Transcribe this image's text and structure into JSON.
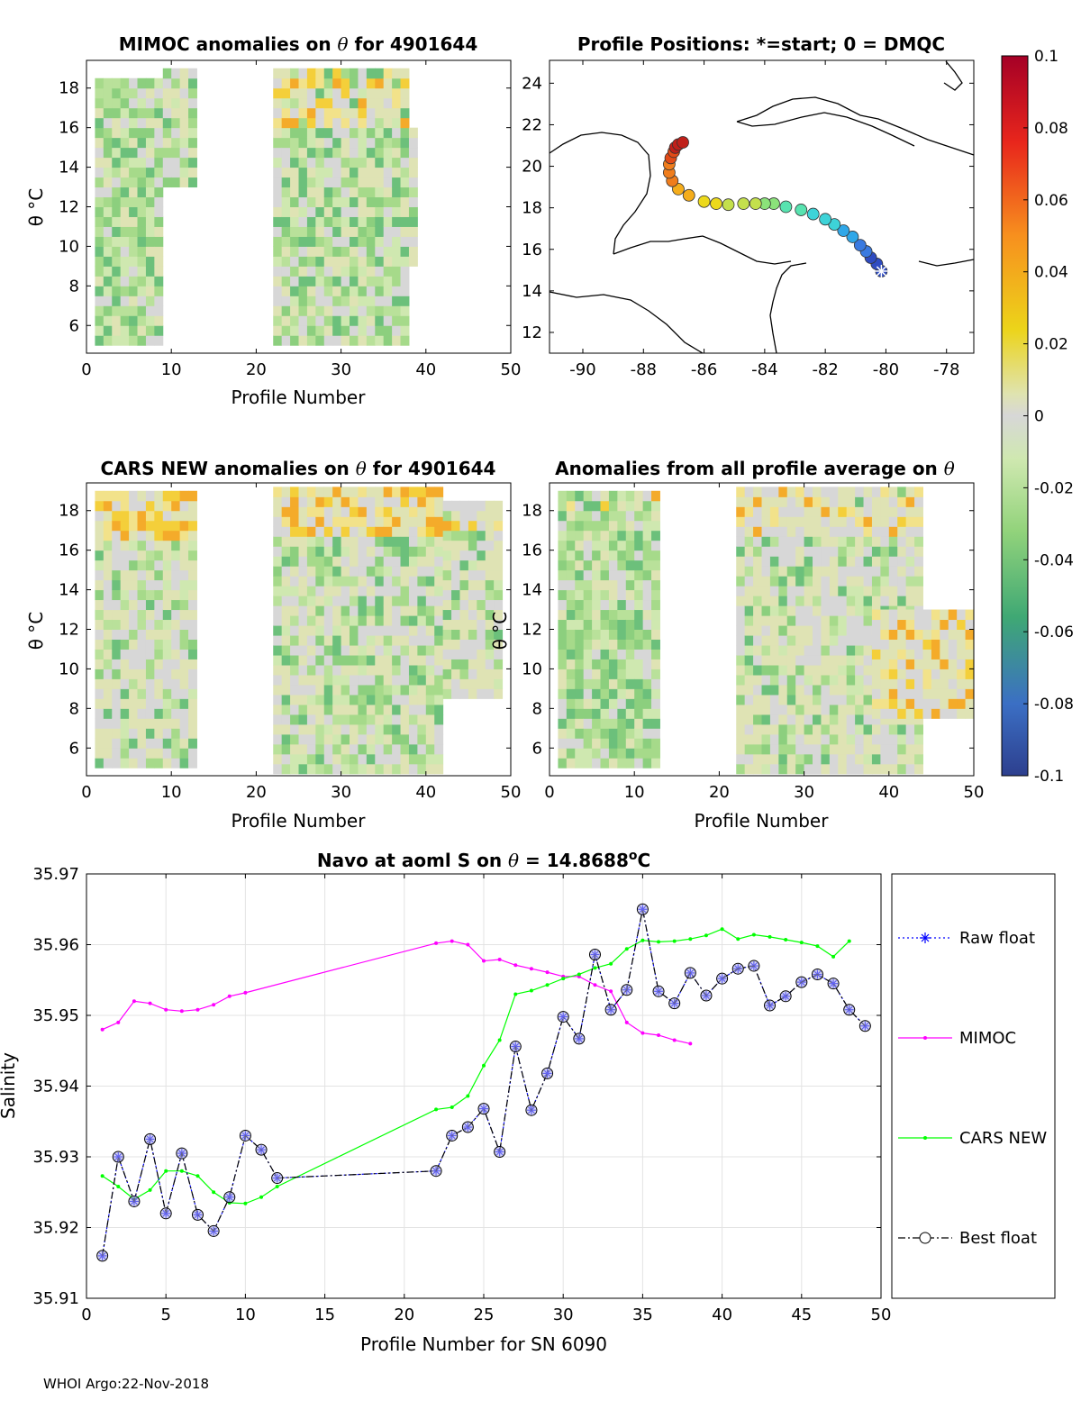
{
  "footer": "WHOI Argo:22-Nov-2018",
  "colors": {
    "raw_float": "#0000ff",
    "mimoc": "#ff00ff",
    "cars_new": "#00ff00",
    "best_float": "#000000",
    "marker_fill": "#b3b3e6",
    "no_data": "#d7d7d7"
  },
  "colorbar": {
    "ticks": [
      "0.1",
      "0.08",
      "0.06",
      "0.04",
      "0.02",
      "0",
      "-0.02",
      "-0.04",
      "-0.06",
      "-0.08",
      "-0.1"
    ]
  },
  "panels": {
    "mimoc": {
      "title_pre": "MIMOC anomalies on",
      "title_sym": "θ",
      "title_post": " for 4901644",
      "ylabel": "θ °C",
      "xlabel": "Profile Number",
      "xticks": [
        "0",
        "10",
        "20",
        "30",
        "40",
        "50"
      ],
      "yticks": [
        "6",
        "8",
        "10",
        "12",
        "14",
        "16",
        "18"
      ],
      "xlim": [
        0,
        50
      ],
      "ylim": [
        4.6,
        19.4
      ]
    },
    "map": {
      "title": "Profile Positions: *=start; 0 = DMQC",
      "xticks": [
        "-90",
        "-88",
        "-86",
        "-84",
        "-82",
        "-80",
        "-78"
      ],
      "yticks": [
        "12",
        "14",
        "16",
        "18",
        "20",
        "22",
        "24"
      ],
      "xlim": [
        -91.1,
        -77.1
      ],
      "ylim": [
        11,
        25.1
      ],
      "track_lon": [
        -80.15,
        -80.3,
        -80.5,
        -80.65,
        -80.85,
        -81.1,
        -81.4,
        -81.7,
        -82.0,
        -82.4,
        -82.8,
        -83.3,
        -83.7,
        -84.0,
        -84.3,
        -84.7,
        -85.2,
        -85.6,
        -86.0,
        -86.5,
        -86.85,
        -87.05,
        -87.15,
        -87.15,
        -87.1,
        -87.0,
        -86.95,
        -86.85,
        -86.7
      ],
      "track_lat": [
        14.95,
        15.3,
        15.6,
        15.9,
        16.2,
        16.6,
        16.9,
        17.2,
        17.45,
        17.7,
        17.9,
        18.05,
        18.2,
        18.2,
        18.2,
        18.2,
        18.15,
        18.2,
        18.3,
        18.6,
        18.9,
        19.3,
        19.7,
        20.1,
        20.4,
        20.7,
        20.9,
        21.05,
        21.15
      ]
    },
    "cars": {
      "title_pre": "CARS NEW anomalies on ",
      "title_sym": "θ",
      "title_post": " for 4901644",
      "ylabel": "θ °C",
      "xlabel": "Profile Number",
      "xticks": [
        "0",
        "10",
        "20",
        "30",
        "40",
        "50"
      ],
      "yticks": [
        "6",
        "8",
        "10",
        "12",
        "14",
        "16",
        "18"
      ],
      "xlim": [
        0,
        50
      ],
      "ylim": [
        4.6,
        19.4
      ]
    },
    "avg": {
      "title_pre": "Anomalies from all profile average on ",
      "title_sym": "θ",
      "title_post": "",
      "ylabel": "θ °C",
      "xlabel": "Profile Number",
      "xticks": [
        "0",
        "10",
        "20",
        "30",
        "40",
        "50"
      ],
      "yticks": [
        "6",
        "8",
        "10",
        "12",
        "14",
        "16",
        "18"
      ],
      "xlim": [
        0,
        50
      ],
      "ylim": [
        4.6,
        19.4
      ]
    }
  },
  "chart_data": {
    "type": "line",
    "title_pre": "Navo at aoml S on ",
    "title_sym": "θ",
    "title_val": " = 14.8688",
    "title_sup": "o",
    "title_unit": "C",
    "xlabel": "Profile Number for SN 6090",
    "ylabel": "Salinity",
    "xlim": [
      0,
      50
    ],
    "ylim": [
      35.91,
      35.97
    ],
    "xticks": [
      "0",
      "5",
      "10",
      "15",
      "20",
      "25",
      "30",
      "35",
      "40",
      "45",
      "50"
    ],
    "yticks": [
      "35.91",
      "35.92",
      "35.93",
      "35.94",
      "35.95",
      "35.96",
      "35.97"
    ],
    "grid": true,
    "legend": [
      "Raw float",
      "MIMOC",
      "CARS NEW",
      "Best float"
    ],
    "series": [
      {
        "name": "Raw float",
        "x": [
          1,
          2,
          3,
          4,
          5,
          6,
          7,
          8,
          9,
          10,
          11,
          12,
          22,
          23,
          24,
          25,
          26,
          27,
          28,
          29,
          30,
          31,
          32,
          33,
          34,
          35,
          36,
          37,
          38,
          39,
          40,
          41,
          42,
          43,
          44,
          45,
          46,
          47,
          48,
          49
        ],
        "values": [
          35.916,
          35.93,
          35.9237,
          35.9325,
          35.922,
          35.9305,
          35.9218,
          35.9195,
          35.9243,
          35.933,
          35.931,
          35.927,
          35.928,
          35.933,
          35.9342,
          35.9368,
          35.9307,
          35.9456,
          35.9366,
          35.9418,
          35.9498,
          35.9467,
          35.9586,
          35.9508,
          35.9536,
          35.965,
          35.9534,
          35.9517,
          35.956,
          35.9528,
          35.9552,
          35.9566,
          35.957,
          35.9514,
          35.9527,
          35.9547,
          35.9558,
          35.9545,
          35.9508,
          35.9485
        ]
      },
      {
        "name": "MIMOC",
        "x": [
          1,
          2,
          3,
          4,
          5,
          6,
          7,
          8,
          9,
          10,
          22,
          23,
          24,
          25,
          26,
          27,
          28,
          29,
          30,
          31,
          32,
          33,
          34,
          35,
          36,
          37,
          38
        ],
        "values": [
          35.948,
          35.949,
          35.952,
          35.9517,
          35.9508,
          35.9506,
          35.9508,
          35.9515,
          35.9527,
          35.9532,
          35.9602,
          35.9605,
          35.96,
          35.9577,
          35.9579,
          35.9571,
          35.9566,
          35.9561,
          35.9555,
          35.9555,
          35.9543,
          35.9534,
          35.949,
          35.9475,
          35.9472,
          35.9465,
          35.946
        ]
      },
      {
        "name": "CARS NEW",
        "x": [
          1,
          2,
          3,
          4,
          5,
          6,
          7,
          8,
          9,
          10,
          11,
          12,
          22,
          23,
          24,
          25,
          26,
          27,
          28,
          29,
          30,
          31,
          32,
          33,
          34,
          35,
          36,
          37,
          38,
          39,
          40,
          41,
          42,
          43,
          44,
          45,
          46,
          47,
          48
        ],
        "values": [
          35.9273,
          35.9258,
          35.924,
          35.9253,
          35.928,
          35.928,
          35.9273,
          35.925,
          35.9235,
          35.9234,
          35.9243,
          35.9258,
          35.9367,
          35.937,
          35.9386,
          35.9429,
          35.9465,
          35.953,
          35.9535,
          35.9543,
          35.9552,
          35.9558,
          35.9567,
          35.9573,
          35.9594,
          35.9606,
          35.9604,
          35.9605,
          35.9608,
          35.9613,
          35.9622,
          35.9608,
          35.9614,
          35.9611,
          35.9607,
          35.9603,
          35.9598,
          35.9583,
          35.9605
        ]
      },
      {
        "name": "Best float",
        "x": [
          1,
          2,
          3,
          4,
          5,
          6,
          7,
          8,
          9,
          10,
          11,
          12,
          22,
          23,
          24,
          25,
          26,
          27,
          28,
          29,
          30,
          31,
          32,
          33,
          34,
          35,
          36,
          37,
          38,
          39,
          40,
          41,
          42,
          43,
          44,
          45,
          46,
          47,
          48,
          49
        ],
        "values": [
          35.916,
          35.93,
          35.9237,
          35.9325,
          35.922,
          35.9305,
          35.9218,
          35.9195,
          35.9243,
          35.933,
          35.931,
          35.927,
          35.928,
          35.933,
          35.9342,
          35.9368,
          35.9307,
          35.9456,
          35.9366,
          35.9418,
          35.9498,
          35.9467,
          35.9586,
          35.9508,
          35.9536,
          35.965,
          35.9534,
          35.9517,
          35.956,
          35.9528,
          35.9552,
          35.9566,
          35.957,
          35.9514,
          35.9527,
          35.9547,
          35.9558,
          35.9545,
          35.9508,
          35.9485
        ]
      }
    ]
  }
}
